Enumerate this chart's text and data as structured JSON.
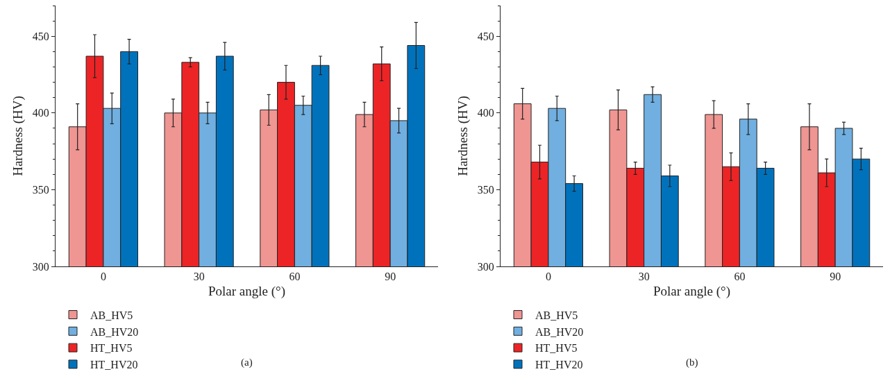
{
  "chart_data": [
    {
      "type": "bar",
      "xlabel": "Polar angle (°)",
      "ylabel": "Hardness (HV)",
      "categories": [
        "0",
        "30",
        "60",
        "90"
      ],
      "ylim": [
        300,
        470
      ],
      "yticks": [
        300,
        350,
        400,
        450
      ],
      "grid": false,
      "legend": "bottom",
      "annotations": [
        "(a)"
      ],
      "series": [
        {
          "name": "AB_HV5",
          "color": "#ef9592",
          "values": [
            391,
            400,
            402,
            399
          ],
          "errors": [
            15,
            9,
            10,
            8
          ]
        },
        {
          "name": "HT_HV5",
          "color": "#ec2426",
          "values": [
            437,
            433,
            420,
            432
          ],
          "errors": [
            14,
            3,
            11,
            11
          ]
        },
        {
          "name": "AB_HV20",
          "color": "#70afe0",
          "values": [
            403,
            400,
            405,
            395
          ],
          "errors": [
            10,
            7,
            6,
            8
          ]
        },
        {
          "name": "HT_HV20",
          "color": "#0072bc",
          "values": [
            440,
            437,
            431,
            444
          ],
          "errors": [
            8,
            9,
            6,
            15
          ]
        }
      ]
    },
    {
      "type": "bar",
      "xlabel": "Polar angle (°)",
      "ylabel": "Hardness (HV)",
      "categories": [
        "0",
        "30",
        "60",
        "90"
      ],
      "ylim": [
        300,
        470
      ],
      "yticks": [
        300,
        350,
        400,
        450
      ],
      "grid": false,
      "legend": "bottom",
      "annotations": [
        "(b)"
      ],
      "series": [
        {
          "name": "AB_HV5",
          "color": "#ef9592",
          "values": [
            406,
            402,
            399,
            391
          ],
          "errors": [
            10,
            13,
            9,
            15
          ]
        },
        {
          "name": "HT_HV5",
          "color": "#ec2426",
          "values": [
            368,
            364,
            365,
            361
          ],
          "errors": [
            11,
            4,
            9,
            9
          ]
        },
        {
          "name": "AB_HV20",
          "color": "#70afe0",
          "values": [
            403,
            412,
            396,
            390
          ],
          "errors": [
            8,
            5,
            10,
            4
          ]
        },
        {
          "name": "HT_HV20",
          "color": "#0072bc",
          "values": [
            354,
            359,
            364,
            370
          ],
          "errors": [
            5,
            7,
            4,
            7
          ]
        }
      ]
    }
  ]
}
